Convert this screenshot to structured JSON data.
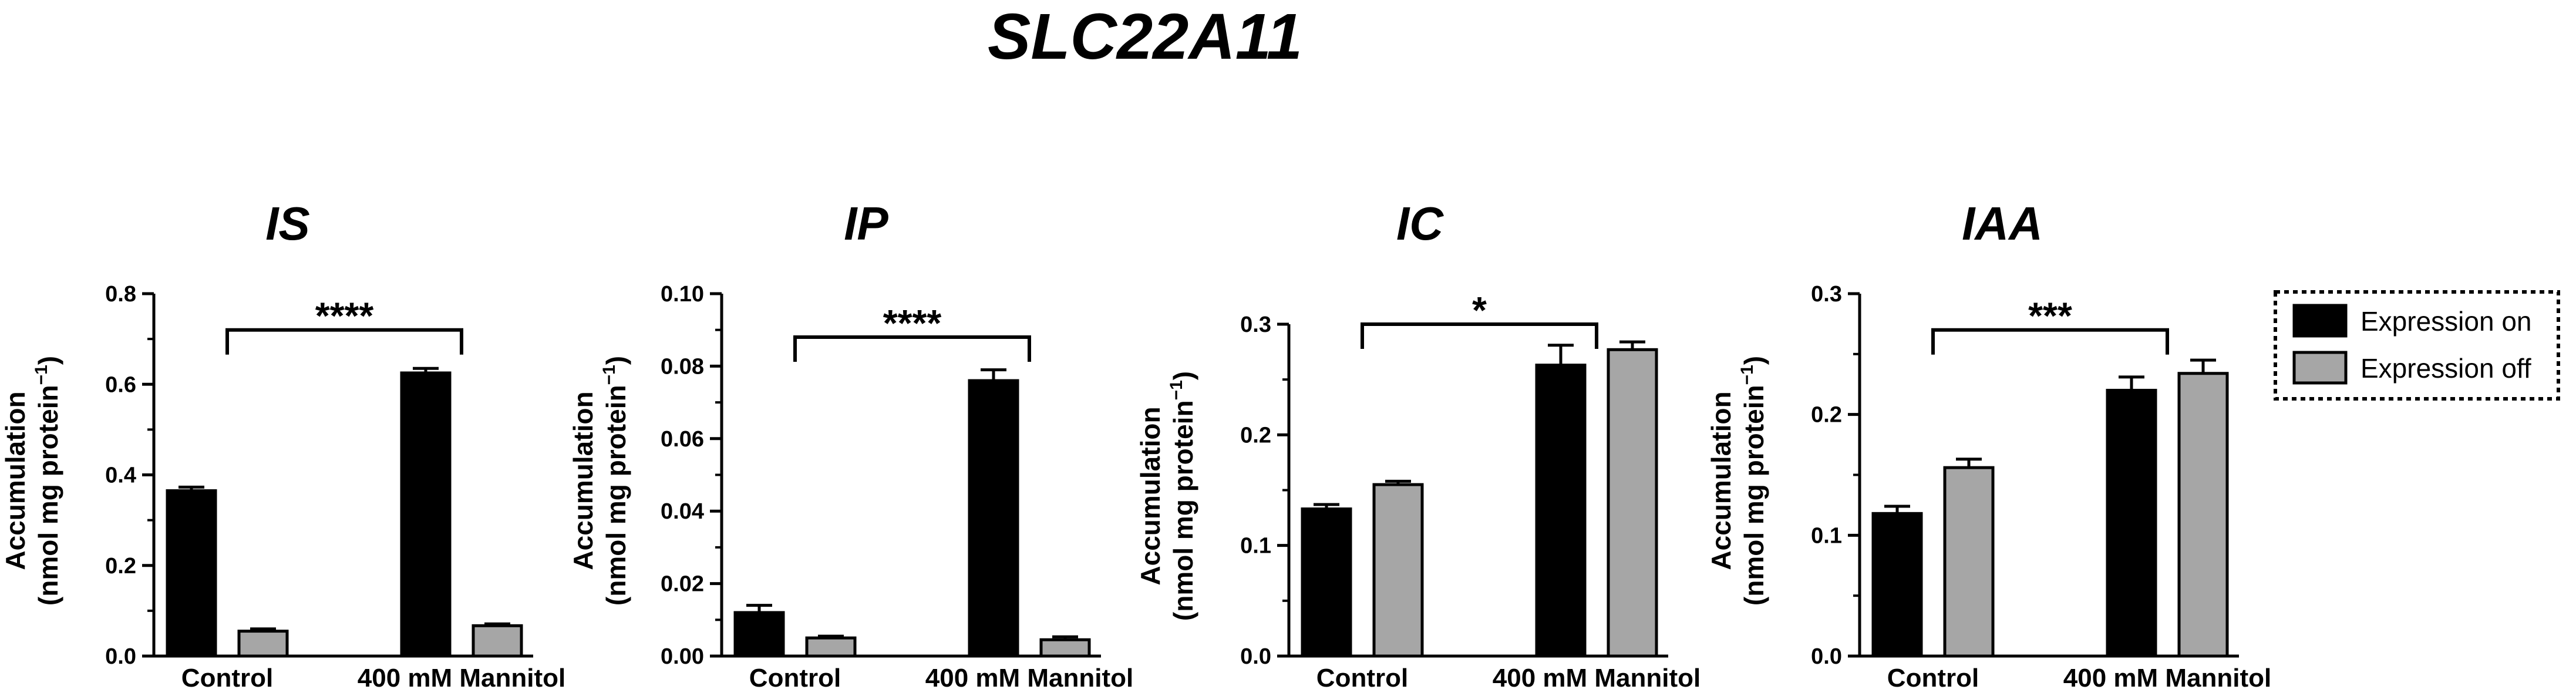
{
  "figure": {
    "title": "SLC22A11"
  },
  "legend": {
    "items": [
      {
        "label": "Expression on",
        "color": "#000000"
      },
      {
        "label": "Expression off",
        "color": "#a6a6a6"
      }
    ],
    "placement": "right",
    "border_style": "dotted"
  },
  "chart_data": [
    {
      "type": "bar",
      "title": "IS",
      "ylabel": [
        "Accumulation",
        "(nmol mg protein",
        "−1",
        ")"
      ],
      "ylim": [
        0,
        0.8
      ],
      "yticks": [
        "0.0",
        "0.2",
        "0.4",
        "0.6",
        "0.8"
      ],
      "categories": [
        "Control",
        "400 mM Mannitol"
      ],
      "series": [
        {
          "name": "Expression on",
          "color": "#000000",
          "values": [
            0.365,
            0.625
          ],
          "errors": [
            0.008,
            0.01
          ]
        },
        {
          "name": "Expression off",
          "color": "#a6a6a6",
          "values": [
            0.055,
            0.067
          ],
          "errors": [
            0.005,
            0.004
          ]
        }
      ],
      "significance": {
        "label": "****",
        "from": "Control",
        "to": "400 mM Mannitol",
        "y": 0.72
      }
    },
    {
      "type": "bar",
      "title": "IP",
      "ylabel": [
        "Accumulation",
        "(nmol mg protein",
        "−1",
        ")"
      ],
      "ylim": [
        0,
        0.1
      ],
      "yticks": [
        "0.00",
        "0.02",
        "0.04",
        "0.06",
        "0.08",
        "0.10"
      ],
      "categories": [
        "Control",
        "400 mM Mannitol"
      ],
      "series": [
        {
          "name": "Expression on",
          "color": "#000000",
          "values": [
            0.012,
            0.076
          ],
          "errors": [
            0.002,
            0.003
          ]
        },
        {
          "name": "Expression off",
          "color": "#a6a6a6",
          "values": [
            0.005,
            0.0045
          ],
          "errors": [
            0.0005,
            0.0008
          ]
        }
      ],
      "significance": {
        "label": "****",
        "from": "Control",
        "to": "400 mM Mannitol",
        "y": 0.088
      }
    },
    {
      "type": "bar",
      "title": "IC",
      "ylabel": [
        "Accumulation",
        "(nmol mg protein",
        "−1",
        ")"
      ],
      "ylim": [
        0,
        0.3
      ],
      "yticks": [
        "0.0",
        "0.1",
        "0.2",
        "0.3"
      ],
      "categories": [
        "Control",
        "400 mM Mannitol"
      ],
      "series": [
        {
          "name": "Expression on",
          "color": "#000000",
          "values": [
            0.133,
            0.263
          ],
          "errors": [
            0.004,
            0.018
          ]
        },
        {
          "name": "Expression off",
          "color": "#a6a6a6",
          "values": [
            0.155,
            0.277
          ],
          "errors": [
            0.003,
            0.007
          ]
        }
      ],
      "significance": {
        "label": "*",
        "from": "Control",
        "to": "400 mM Mannitol",
        "y": 0.3
      }
    },
    {
      "type": "bar",
      "title": "IAA",
      "ylabel": [
        "Accumulation",
        "(nmol mg protein",
        "−1",
        ")"
      ],
      "ylim": [
        0,
        0.3
      ],
      "yticks": [
        "0.0",
        "0.1",
        "0.2",
        "0.3"
      ],
      "categories": [
        "Control",
        "400 mM Mannitol"
      ],
      "series": [
        {
          "name": "Expression on",
          "color": "#000000",
          "values": [
            0.118,
            0.22
          ],
          "errors": [
            0.006,
            0.011
          ]
        },
        {
          "name": "Expression off",
          "color": "#a6a6a6",
          "values": [
            0.156,
            0.234
          ],
          "errors": [
            0.007,
            0.011
          ]
        }
      ],
      "significance": {
        "label": "***",
        "from": "Control",
        "to": "400 mM Mannitol",
        "y": 0.27
      }
    }
  ]
}
